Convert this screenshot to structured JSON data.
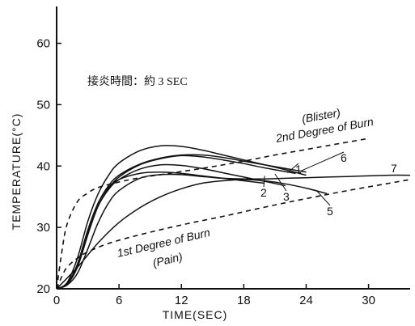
{
  "chart_data": {
    "type": "line",
    "title": "",
    "xlabel": "TIME(SEC)",
    "ylabel": "TEMPERATURE(°C)",
    "xlim": [
      0,
      34
    ],
    "ylim": [
      20,
      66
    ],
    "x_ticks": [
      0,
      6,
      12,
      18,
      24,
      30
    ],
    "x_tick_labels": [
      "0",
      "6",
      "12",
      "18",
      "24",
      "30"
    ],
    "y_ticks": [
      20,
      30,
      40,
      50,
      60
    ],
    "y_tick_labels": [
      "20",
      "30",
      "40",
      "50",
      "60"
    ],
    "grid": false,
    "annotation": "接炎時間：約 3 SEC",
    "series": [
      {
        "name": "1",
        "style": "solid",
        "x": [
          0,
          1,
          2,
          3,
          4,
          5,
          6,
          8,
          10,
          12,
          14,
          16,
          18,
          20,
          23
        ],
        "y": [
          20,
          20.8,
          23.8,
          29,
          33.5,
          36.3,
          38.2,
          40.2,
          41.2,
          41.7,
          41.5,
          41.0,
          40.4,
          39.7,
          38.8
        ]
      },
      {
        "name": "2",
        "style": "solid",
        "x": [
          0,
          1,
          2,
          3,
          4,
          5,
          6,
          8,
          10,
          12,
          14,
          16,
          18,
          20
        ],
        "y": [
          20,
          20.8,
          24,
          29.5,
          34,
          36.5,
          37.8,
          38.8,
          39.0,
          38.8,
          38.4,
          38.0,
          37.6,
          37.2
        ]
      },
      {
        "name": "3",
        "style": "solid",
        "x": [
          0,
          1,
          2,
          3,
          4,
          5,
          6,
          8,
          10,
          12,
          14,
          16,
          18,
          20,
          22
        ],
        "y": [
          20,
          20.7,
          23.5,
          28.8,
          33.5,
          36.2,
          37.8,
          39.5,
          40.2,
          40.1,
          39.6,
          38.9,
          38.2,
          37.5,
          36.8
        ]
      },
      {
        "name": "4",
        "style": "solid",
        "x": [
          0,
          1,
          2,
          3,
          4,
          5,
          6,
          8,
          10,
          12,
          14,
          16,
          18,
          20,
          22,
          24
        ],
        "y": [
          20,
          21,
          25,
          31,
          35.5,
          38.5,
          40.5,
          42.5,
          43.3,
          43.2,
          42.6,
          41.8,
          41.0,
          40.2,
          39.4,
          38.5
        ]
      },
      {
        "name": "5",
        "style": "solid",
        "x": [
          0,
          2,
          4,
          6,
          8,
          10,
          12,
          14,
          16,
          18,
          20,
          22,
          24,
          26
        ],
        "y": [
          20,
          23.5,
          27.5,
          30.8,
          33.2,
          35.0,
          36.3,
          37.2,
          37.6,
          37.8,
          37.6,
          37.1,
          36.4,
          35.5
        ]
      },
      {
        "name": "6",
        "style": "solid",
        "x": [
          0,
          1,
          2,
          3,
          4,
          5,
          6,
          8,
          10,
          12,
          14,
          16,
          18,
          20,
          22,
          24
        ],
        "y": [
          20,
          20.8,
          24,
          29.6,
          34,
          36.8,
          38.5,
          40.3,
          41.3,
          41.8,
          41.8,
          41.4,
          40.8,
          40.2,
          39.6,
          39.0
        ]
      },
      {
        "name": "7",
        "style": "solid",
        "x": [
          0,
          1,
          2,
          3,
          4,
          5,
          6,
          8,
          10,
          12,
          14,
          16,
          18,
          20,
          22,
          24,
          26,
          28,
          30,
          32,
          34
        ],
        "y": [
          20,
          20.6,
          22.5,
          26.5,
          30.8,
          34,
          36,
          38,
          38.6,
          38.6,
          38.3,
          38.0,
          37.9,
          37.9,
          38.0,
          38.1,
          38.2,
          38.3,
          38.4,
          38.5,
          38.5
        ]
      },
      {
        "name": "2nd Degree of Burn (Blister)",
        "style": "dashed",
        "x": [
          0,
          0.5,
          1,
          2,
          3,
          4,
          6,
          8,
          10,
          12,
          15,
          18,
          21,
          24,
          27,
          30
        ],
        "y": [
          20,
          26,
          30.5,
          34.2,
          35.6,
          36.5,
          37.4,
          38.1,
          38.6,
          39.1,
          39.9,
          40.8,
          41.8,
          42.7,
          43.6,
          44.5
        ]
      },
      {
        "name": "1st Degree of Burn (Pain)",
        "style": "dashed",
        "x": [
          0,
          0.5,
          1,
          2,
          3,
          5,
          8,
          12,
          16,
          20,
          24,
          28,
          32,
          34
        ],
        "y": [
          20,
          22,
          23.5,
          25,
          26,
          27.4,
          28.8,
          30.4,
          31.8,
          33.3,
          34.7,
          36.0,
          37.2,
          37.8
        ]
      }
    ],
    "labels": {
      "upper_threshold": "2nd Degree of Burn",
      "upper_threshold_sub": "(Blister)",
      "lower_threshold": "1st Degree of Burn",
      "lower_threshold_sub": "(Pain)"
    }
  }
}
